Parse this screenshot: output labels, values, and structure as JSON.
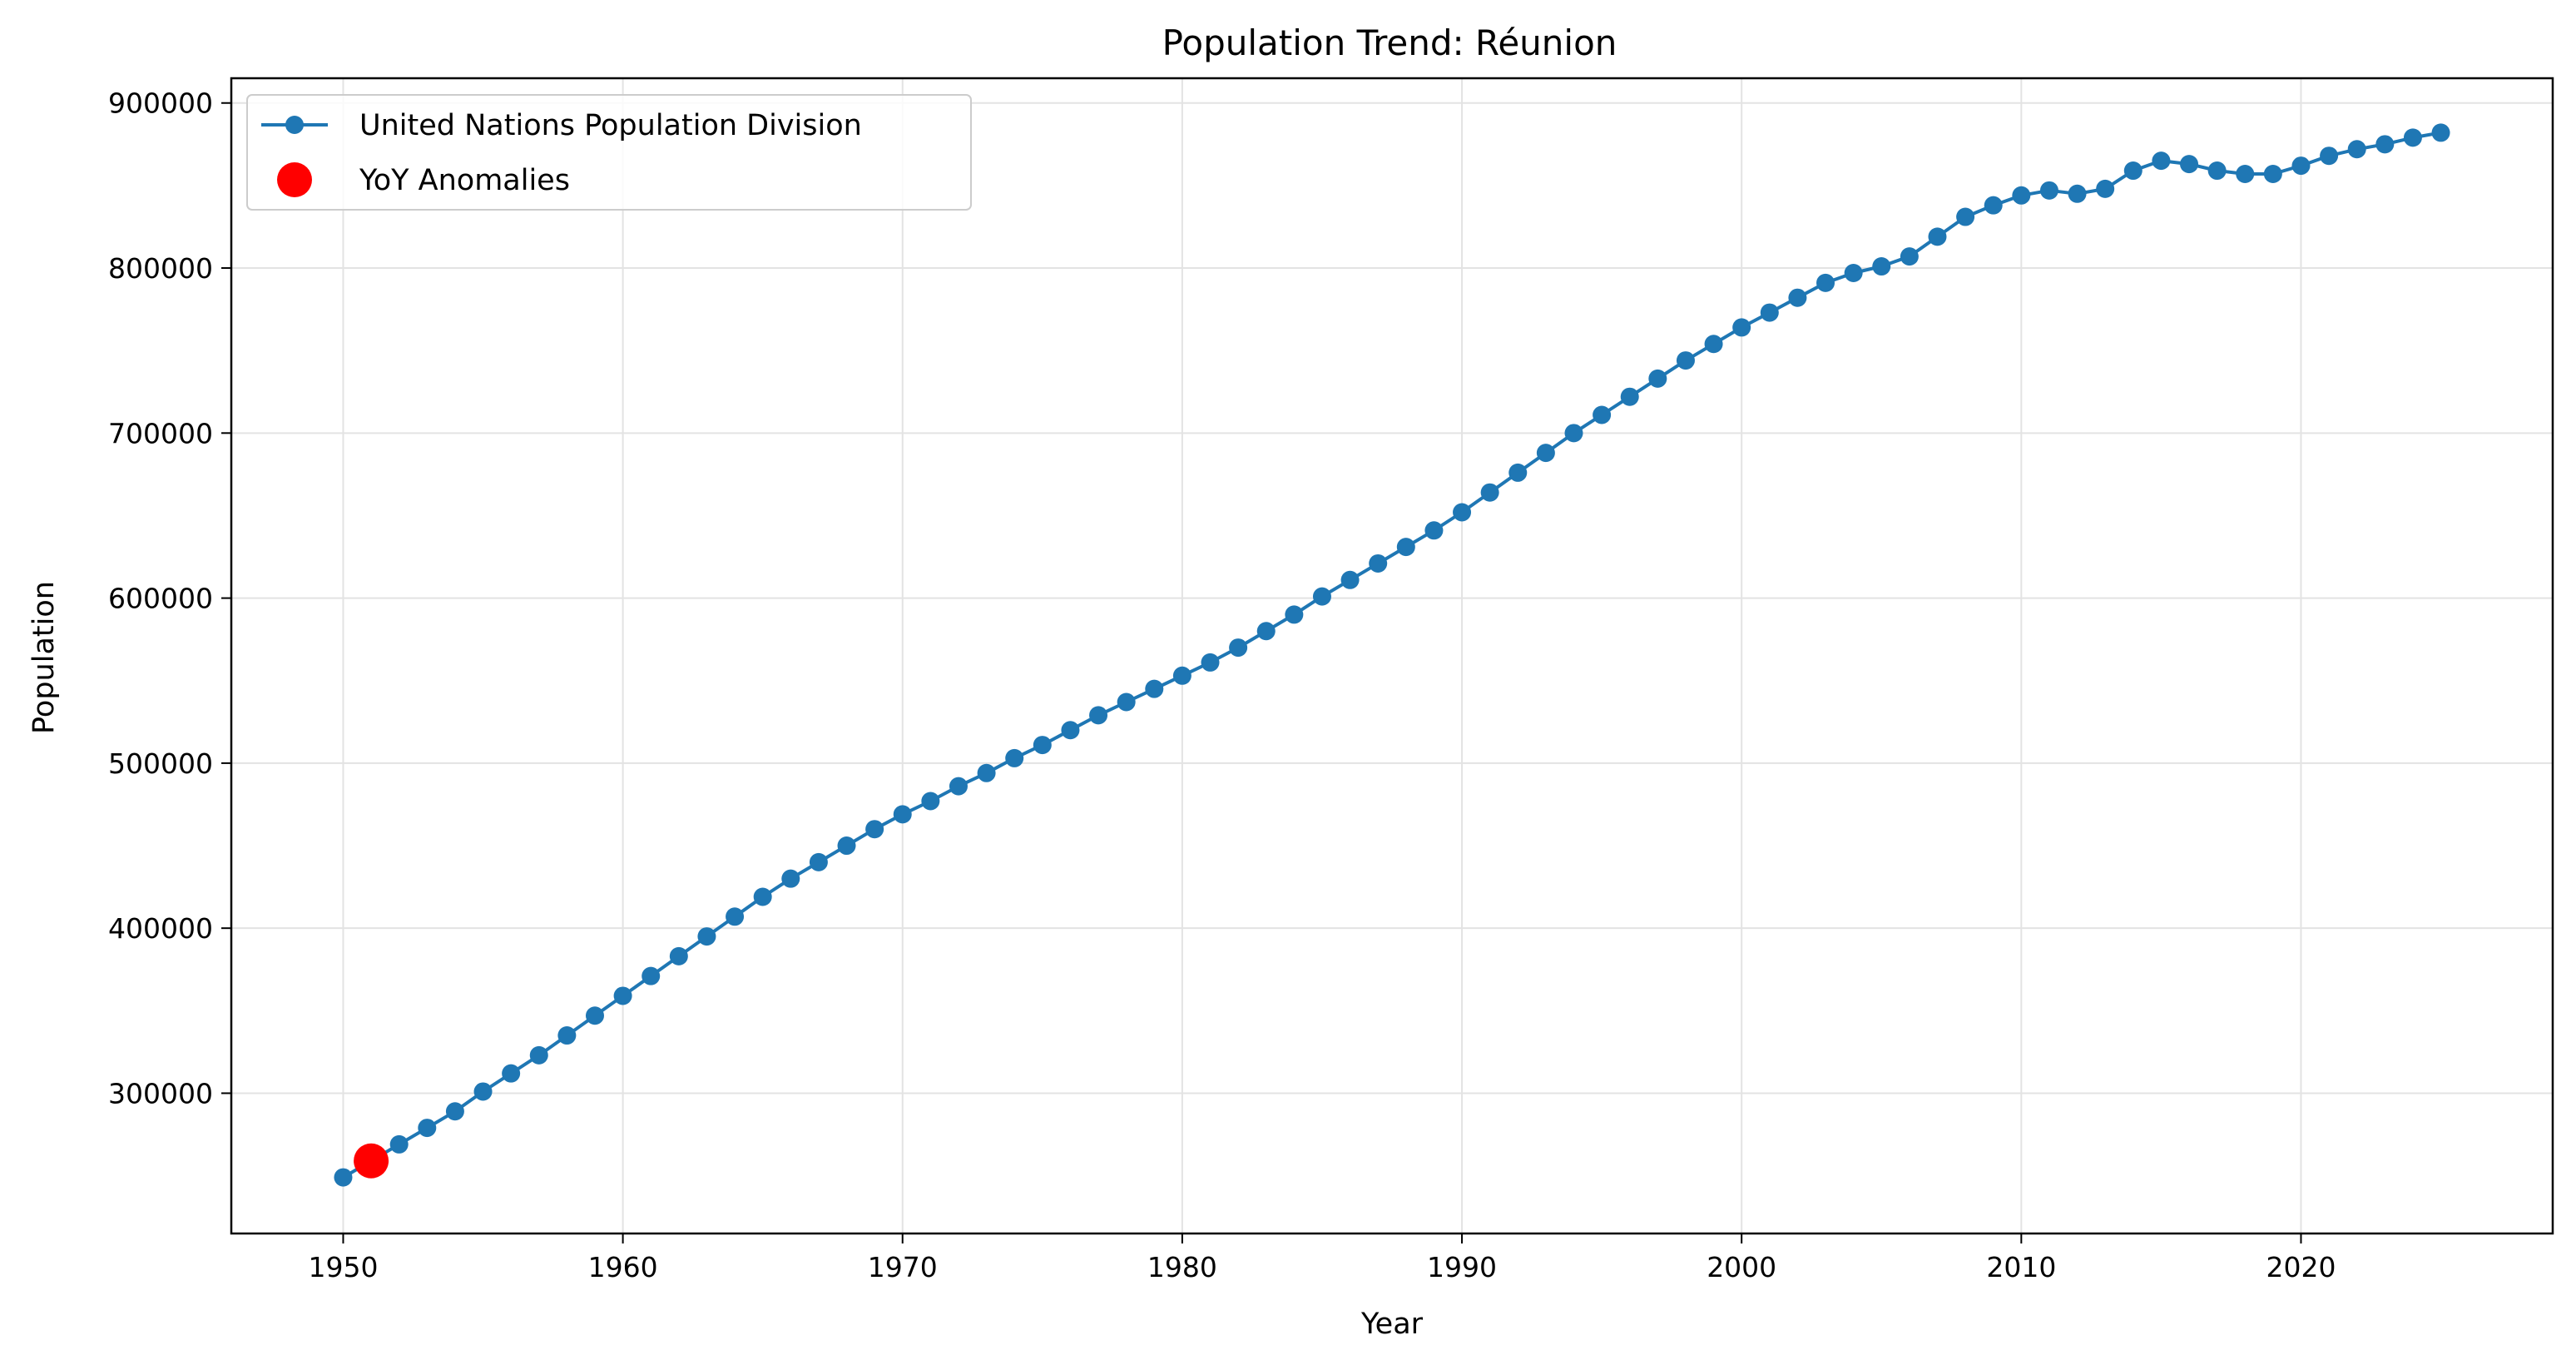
{
  "chart_data": {
    "type": "line",
    "title": "Population Trend: Réunion",
    "xlabel": "Year",
    "ylabel": "Population",
    "xlim": [
      1946,
      2029
    ],
    "ylim": [
      215000,
      915000
    ],
    "x_ticks": [
      1950,
      1960,
      1970,
      1980,
      1990,
      2000,
      2010,
      2020
    ],
    "x_tick_labels": [
      "1950",
      "1960",
      "1970",
      "1980",
      "1990",
      "2000",
      "2010",
      "2020"
    ],
    "y_ticks": [
      300000,
      400000,
      500000,
      600000,
      700000,
      800000,
      900000
    ],
    "y_tick_labels": [
      "300000",
      "400000",
      "500000",
      "600000",
      "700000",
      "800000",
      "900000"
    ],
    "grid": true,
    "legend_position": "top-left",
    "series": [
      {
        "name": "United Nations Population Division",
        "color": "#1f77b4",
        "x": [
          1950,
          1951,
          1952,
          1953,
          1954,
          1955,
          1956,
          1957,
          1958,
          1959,
          1960,
          1961,
          1962,
          1963,
          1964,
          1965,
          1966,
          1967,
          1968,
          1969,
          1970,
          1971,
          1972,
          1973,
          1974,
          1975,
          1976,
          1977,
          1978,
          1979,
          1980,
          1981,
          1982,
          1983,
          1984,
          1985,
          1986,
          1987,
          1988,
          1989,
          1990,
          1991,
          1992,
          1993,
          1994,
          1995,
          1996,
          1997,
          1998,
          1999,
          2000,
          2001,
          2002,
          2003,
          2004,
          2005,
          2006,
          2007,
          2008,
          2009,
          2010,
          2011,
          2012,
          2013,
          2014,
          2015,
          2016,
          2017,
          2018,
          2019,
          2020,
          2021,
          2022,
          2023,
          2024,
          2025
        ],
        "y": [
          249000,
          259000,
          269000,
          279000,
          289000,
          301000,
          312000,
          323000,
          335000,
          347000,
          359000,
          371000,
          383000,
          395000,
          407000,
          419000,
          430000,
          440000,
          450000,
          460000,
          469000,
          477000,
          486000,
          494000,
          503000,
          511000,
          520000,
          529000,
          537000,
          545000,
          553000,
          561000,
          570000,
          580000,
          590000,
          601000,
          611000,
          621000,
          631000,
          641000,
          652000,
          664000,
          676000,
          688000,
          700000,
          711000,
          722000,
          733000,
          744000,
          754000,
          764000,
          773000,
          782000,
          791000,
          797000,
          801000,
          807000,
          819000,
          831000,
          838000,
          844000,
          847000,
          845000,
          848000,
          859000,
          865000,
          863000,
          859000,
          857000,
          857000,
          862000,
          868000,
          872000,
          875000,
          879000,
          882000
        ]
      },
      {
        "name": "YoY Anomalies",
        "color": "#ff0000",
        "marker_only": true,
        "x": [
          1951
        ],
        "y": [
          259000
        ]
      }
    ]
  }
}
